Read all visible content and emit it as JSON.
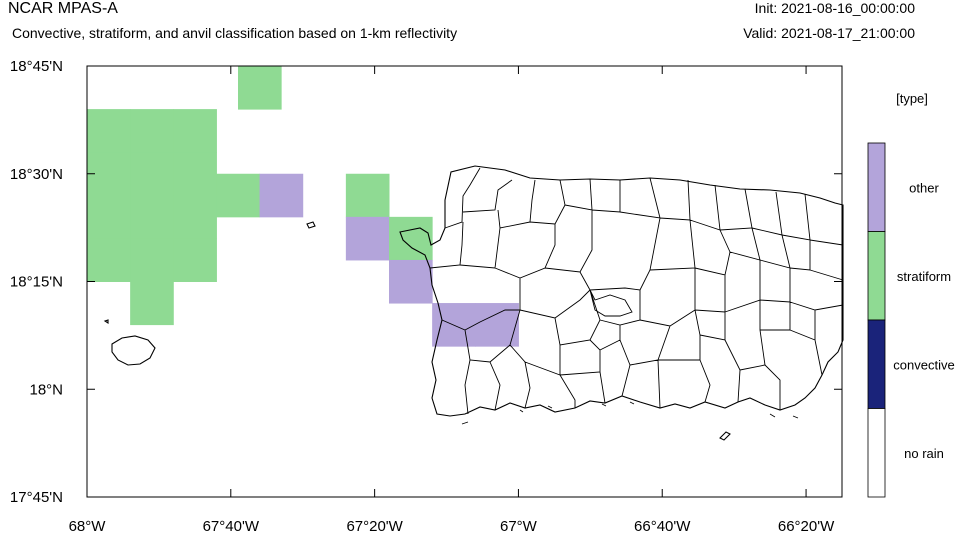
{
  "header": {
    "model": "NCAR MPAS-A",
    "description": "Convective, stratiform, and anvil classification based on 1-km reflectivity",
    "init": "Init: 2021-08-16_00:00:00",
    "valid": "Valid: 2021-08-17_21:00:00"
  },
  "axes": {
    "lon_range": [
      -68.0,
      -66.25
    ],
    "lat_range": [
      17.75,
      18.75
    ],
    "x_ticks": [
      {
        "lon": -68.0,
        "label": "68°W"
      },
      {
        "lon": -67.6667,
        "label": "67°40'W"
      },
      {
        "lon": -67.3333,
        "label": "67°20'W"
      },
      {
        "lon": -67.0,
        "label": "67°W"
      },
      {
        "lon": -66.6667,
        "label": "66°40'W"
      },
      {
        "lon": -66.3333,
        "label": "66°20'W"
      }
    ],
    "y_ticks": [
      {
        "lat": 18.75,
        "label": "18°45'N"
      },
      {
        "lat": 18.5,
        "label": "18°30'N"
      },
      {
        "lat": 18.25,
        "label": "18°15'N"
      },
      {
        "lat": 18.0,
        "label": "18°N"
      },
      {
        "lat": 17.75,
        "label": "17°45'N"
      }
    ]
  },
  "legend": {
    "title": "[type]",
    "entries": [
      {
        "label": "other",
        "color": "#b3a4da"
      },
      {
        "label": "stratiform",
        "color": "#8fda93"
      },
      {
        "label": "convective",
        "color": "#1a237a"
      },
      {
        "label": "no rain",
        "color": "#ffffff"
      }
    ]
  },
  "grid_cells": [
    {
      "lon": -67.6,
      "lat": 18.7,
      "type": "stratiform"
    },
    {
      "lon": -67.95,
      "lat": 18.6,
      "type": "stratiform"
    },
    {
      "lon": -67.85,
      "lat": 18.6,
      "type": "stratiform"
    },
    {
      "lon": -67.75,
      "lat": 18.6,
      "type": "stratiform"
    },
    {
      "lon": -67.95,
      "lat": 18.5,
      "type": "stratiform"
    },
    {
      "lon": -67.85,
      "lat": 18.5,
      "type": "stratiform"
    },
    {
      "lon": -67.75,
      "lat": 18.5,
      "type": "stratiform"
    },
    {
      "lon": -67.65,
      "lat": 18.45,
      "type": "stratiform"
    },
    {
      "lon": -67.55,
      "lat": 18.45,
      "type": "other"
    },
    {
      "lon": -67.95,
      "lat": 18.4,
      "type": "stratiform"
    },
    {
      "lon": -67.85,
      "lat": 18.4,
      "type": "stratiform"
    },
    {
      "lon": -67.75,
      "lat": 18.4,
      "type": "stratiform"
    },
    {
      "lon": -67.95,
      "lat": 18.3,
      "type": "stratiform"
    },
    {
      "lon": -67.85,
      "lat": 18.3,
      "type": "stratiform"
    },
    {
      "lon": -67.75,
      "lat": 18.3,
      "type": "stratiform"
    },
    {
      "lon": -67.85,
      "lat": 18.2,
      "type": "stratiform"
    },
    {
      "lon": -67.35,
      "lat": 18.45,
      "type": "stratiform"
    },
    {
      "lon": -67.35,
      "lat": 18.35,
      "type": "other"
    },
    {
      "lon": -67.25,
      "lat": 18.35,
      "type": "stratiform"
    },
    {
      "lon": -67.25,
      "lat": 18.25,
      "type": "other"
    },
    {
      "lon": -67.15,
      "lat": 18.15,
      "type": "other"
    },
    {
      "lon": -67.05,
      "lat": 18.15,
      "type": "other"
    }
  ]
}
